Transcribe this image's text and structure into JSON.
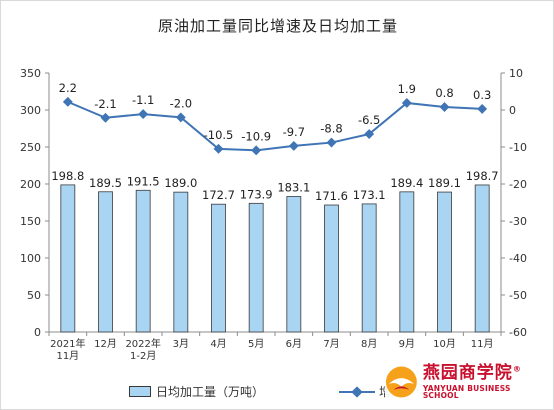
{
  "title": "原油加工量同比增速及日均加工量",
  "chart_data": {
    "type": "bar",
    "categories": [
      [
        "2021年",
        "11月"
      ],
      [
        "12月"
      ],
      [
        "2022年",
        "1-2月"
      ],
      [
        "3月"
      ],
      [
        "4月"
      ],
      [
        "5月"
      ],
      [
        "6月"
      ],
      [
        "7月"
      ],
      [
        "8月"
      ],
      [
        "9月"
      ],
      [
        "10月"
      ],
      [
        "11月"
      ]
    ],
    "series": [
      {
        "name": "日均加工量（万吨）",
        "type": "bar",
        "axis": "left",
        "values": [
          198.8,
          189.5,
          191.5,
          189.0,
          172.7,
          173.9,
          183.1,
          171.6,
          173.1,
          189.4,
          189.1,
          198.7
        ],
        "labels": [
          "198.8",
          "189.5",
          "191.5",
          "189.0",
          "172.7",
          "173.9",
          "183.1",
          "171.6",
          "173.1",
          "189.4",
          "189.1",
          "198.7"
        ]
      },
      {
        "name": "增速",
        "type": "line",
        "axis": "right",
        "values": [
          2.2,
          -2.1,
          -1.1,
          -2.0,
          -10.5,
          -10.9,
          -9.7,
          -8.8,
          -6.5,
          1.9,
          0.8,
          0.3
        ],
        "labels": [
          "2.2",
          "-2.1",
          "-1.1",
          "-2.0",
          "-10.5",
          "-10.9",
          "-9.7",
          "-8.8",
          "-6.5",
          "1.9",
          "0.8",
          "0.3"
        ]
      }
    ],
    "y_left": {
      "min": 0,
      "max": 350,
      "step": 50,
      "ticks": [
        "0",
        "50",
        "100",
        "150",
        "200",
        "250",
        "300",
        "350"
      ]
    },
    "y_right": {
      "min": -60,
      "max": 10,
      "step": 10,
      "ticks": [
        "-60",
        "-50",
        "-40",
        "-30",
        "-20",
        "-10",
        "0",
        "10"
      ]
    },
    "grid": false,
    "legend": "bottom",
    "colors": {
      "bar_fill": "#a9d5f3",
      "bar_stroke": "#3a3a3a",
      "line": "#3f74b5",
      "axis": "#8c8c8c"
    }
  },
  "legend": {
    "bar_label": "日均加工量（万吨）",
    "line_label": "增速"
  },
  "watermark": {
    "name_cn": "燕园商学院",
    "name_en": "YANYUAN BUSINESS SCHOOL",
    "registered": "®"
  }
}
